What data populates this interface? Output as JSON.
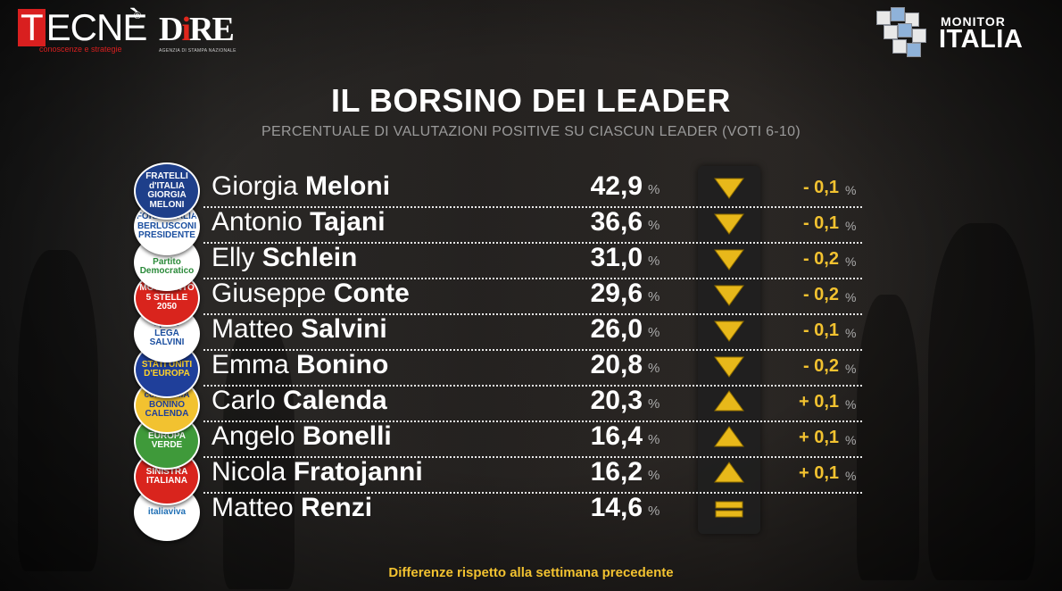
{
  "branding": {
    "tecne_first": "T",
    "tecne_rest": "ECNÈ",
    "tecne_reg": "®",
    "tecne_sub": "conoscenze e strategie",
    "dire_d": "D",
    "dire_i": "i",
    "dire_re": "RE",
    "dire_sub": "AGENZIA DI STAMPA NAZIONALE",
    "monitor_top": "MONITOR",
    "monitor_big": "ITALIA"
  },
  "title": "IL BORSINO DEI LEADER",
  "subtitle": "PERCENTUALE DI VALUTAZIONI POSITIVE SU CIASCUN LEADER (VOTI 6-10)",
  "footer": "Differenze rispetto alla settimana precedente",
  "pct_symbol": "%",
  "leaders": [
    {
      "first": "Giorgia",
      "last": "Meloni",
      "value": "42,9",
      "trend": "down",
      "delta": "- 0,1",
      "logo_lines": [
        "FRATELLI",
        "d'ITALIA",
        "GIORGIA",
        "MELONI"
      ],
      "logo_bg": "#1e3f8a",
      "logo_fg": "#ffffff"
    },
    {
      "first": "Antonio",
      "last": "Tajani",
      "value": "36,6",
      "trend": "down",
      "delta": "- 0,1",
      "logo_lines": [
        "FORZA ITALIA",
        "BERLUSCONI",
        "PRESIDENTE"
      ],
      "logo_bg": "#ffffff",
      "logo_fg": "#1b4fa0"
    },
    {
      "first": "Elly",
      "last": "Schlein",
      "value": "31,0",
      "trend": "down",
      "delta": "- 0,2",
      "logo_lines": [
        "PD",
        "Partito Democratico"
      ],
      "logo_bg": "#ffffff",
      "logo_fg": "#2b8a3a"
    },
    {
      "first": "Giuseppe",
      "last": "Conte",
      "value": "29,6",
      "trend": "down",
      "delta": "- 0,2",
      "logo_lines": [
        "MOVIMENTO",
        "5 STELLE",
        "2050"
      ],
      "logo_bg": "#d9241d",
      "logo_fg": "#ffffff"
    },
    {
      "first": "Matteo",
      "last": "Salvini",
      "value": "26,0",
      "trend": "down",
      "delta": "- 0,1",
      "logo_lines": [
        "#pace",
        "LEGA",
        "SALVINI"
      ],
      "logo_bg": "#ffffff",
      "logo_fg": "#1b4fa0"
    },
    {
      "first": "Emma",
      "last": "Bonino",
      "value": "20,8",
      "trend": "down",
      "delta": "- 0,2",
      "logo_lines": [
        "STATI UNITI",
        "D'EUROPA"
      ],
      "logo_bg": "#1f3f9a",
      "logo_fg": "#ffd22a"
    },
    {
      "first": "Carlo",
      "last": "Calenda",
      "value": "20,3",
      "trend": "up",
      "delta": "+ 0,1",
      "logo_lines": [
        "con EMMA",
        "BONINO",
        "CALENDA"
      ],
      "logo_bg": "#f2c230",
      "logo_fg": "#1f3f9a"
    },
    {
      "first": "Angelo",
      "last": "Bonelli",
      "value": "16,4",
      "trend": "up",
      "delta": "+ 0,1",
      "logo_lines": [
        "EUROPA",
        "VERDE"
      ],
      "logo_bg": "#3f9a3a",
      "logo_fg": "#ffffff"
    },
    {
      "first": "Nicola",
      "last": "Fratojanni",
      "value": "16,2",
      "trend": "up",
      "delta": "+ 0,1",
      "logo_lines": [
        "SINISTRA",
        "ITALIANA"
      ],
      "logo_bg": "#d9241d",
      "logo_fg": "#ffffff"
    },
    {
      "first": "Matteo",
      "last": "Renzi",
      "value": "14,6",
      "trend": "equal",
      "delta": "",
      "logo_lines": [
        "italiaviva"
      ],
      "logo_bg": "#ffffff",
      "logo_fg": "#1f6fb5"
    }
  ],
  "colors": {
    "accent": "#f2c230",
    "arrow_fill": "#e8b81a"
  }
}
